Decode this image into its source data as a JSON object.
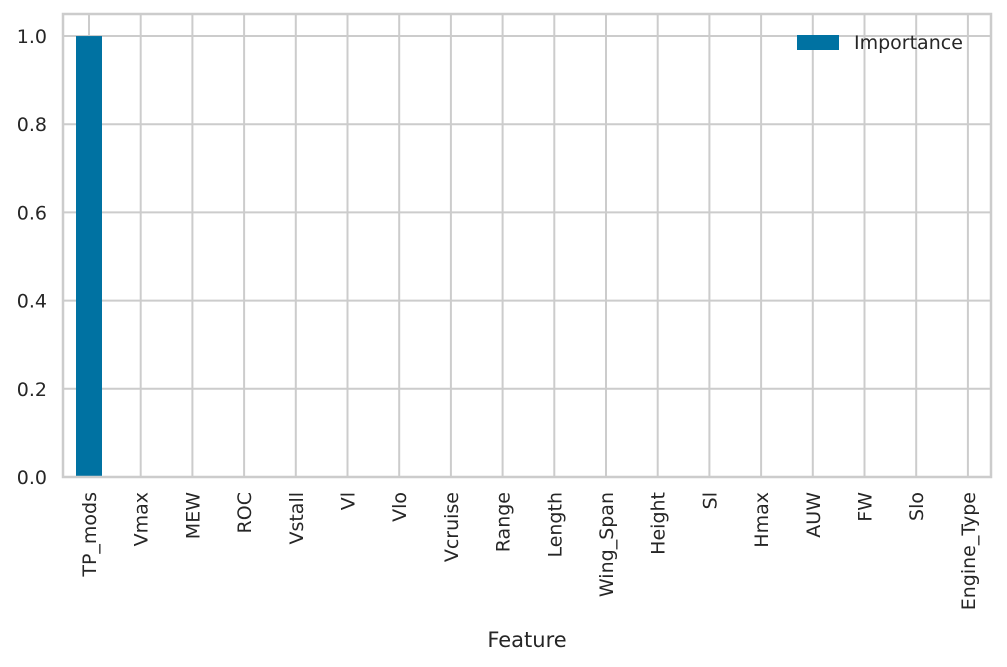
{
  "chart_data": {
    "type": "bar",
    "categories": [
      "TP_mods",
      "Vmax",
      "MEW",
      "ROC",
      "Vstall",
      "Vl",
      "Vlo",
      "Vcruise",
      "Range",
      "Length",
      "Wing_Span",
      "Height",
      "Sl",
      "Hmax",
      "AUW",
      "FW",
      "Slo",
      "Engine_Type"
    ],
    "series": [
      {
        "name": "Importance",
        "values": [
          1.0,
          0,
          0,
          0,
          0,
          0,
          0,
          0,
          0,
          0,
          0,
          0,
          0,
          0,
          0,
          0,
          0,
          0
        ]
      }
    ],
    "xlabel": "Feature",
    "ylabel": "",
    "ylim": [
      0,
      1.05
    ],
    "yticks": [
      "0.0",
      "0.2",
      "0.4",
      "0.6",
      "0.8",
      "1.0"
    ],
    "grid": true,
    "legend_position": "top-right",
    "bar_color": "#0072a2",
    "grid_color": "#cccccc"
  }
}
